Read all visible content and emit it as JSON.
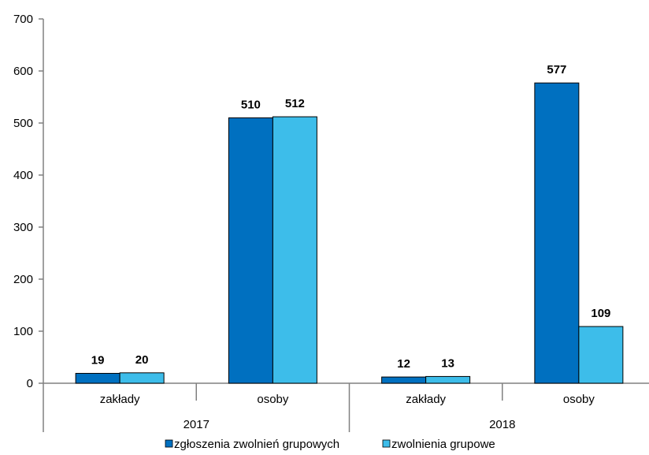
{
  "chart_data": {
    "type": "bar",
    "groups": [
      {
        "label": "2017",
        "categories": [
          "zakłady",
          "osoby"
        ]
      },
      {
        "label": "2018",
        "categories": [
          "zakłady",
          "osoby"
        ]
      }
    ],
    "series": [
      {
        "name": "zgłoszenia zwolnień grupowych",
        "color": "#0070C0",
        "values": [
          19,
          510,
          12,
          577
        ]
      },
      {
        "name": "zwolnienia grupowe",
        "color": "#3DBDEA",
        "values": [
          20,
          512,
          13,
          109
        ]
      }
    ],
    "ylim": [
      0,
      700
    ],
    "yticks": [
      "0",
      "100",
      "200",
      "300",
      "400",
      "500",
      "600",
      "700"
    ],
    "grid": false,
    "legend_position": "bottom"
  }
}
